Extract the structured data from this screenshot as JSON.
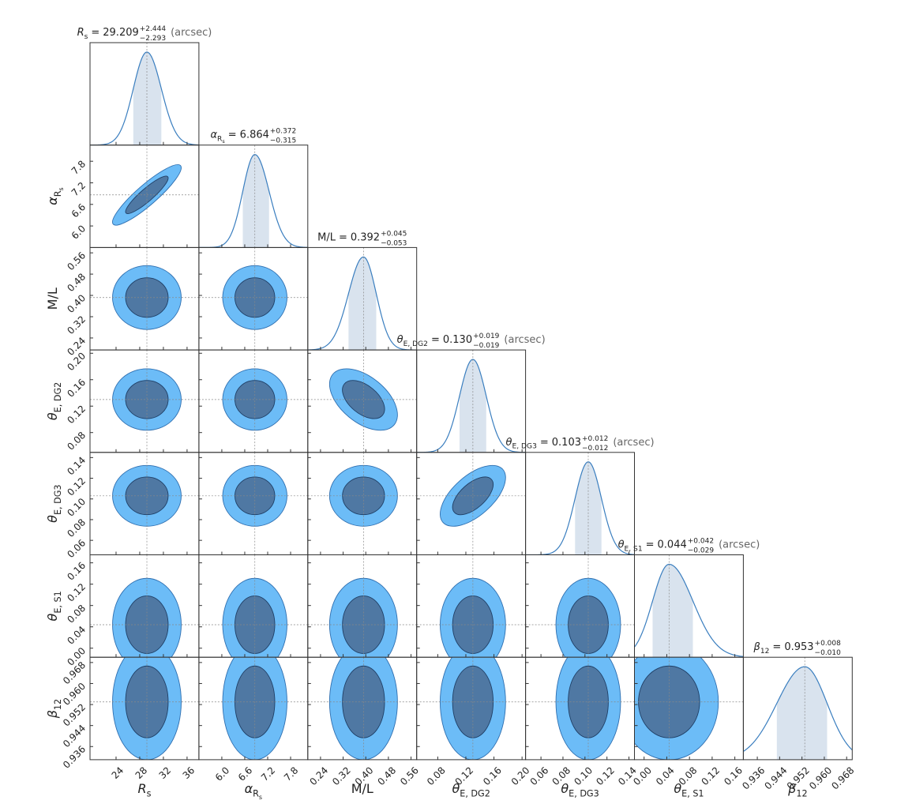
{
  "chart_data": {
    "type": "corner",
    "equals": "=",
    "parameters": [
      {
        "symbol": "R",
        "sub": "s",
        "median": 29.209,
        "median_label": "29.209",
        "err_plus": 2.444,
        "err_minus": 2.293,
        "err_plus_label": "+2.444",
        "err_minus_label": "−2.293",
        "unit": "(arcsec)",
        "lim": [
          19.6,
          38
        ],
        "ticks": [
          24,
          28,
          32,
          36
        ]
      },
      {
        "symbol": "α",
        "sub": "R",
        "sub2": "s",
        "median": 6.864,
        "median_label": "6.864",
        "err_plus": 0.372,
        "err_minus": 0.315,
        "err_plus_label": "+0.372",
        "err_minus_label": "−0.315",
        "lim": [
          5.4,
          8.25
        ],
        "ticks": [
          {
            "value": 6,
            "label": "6.0"
          },
          6.6,
          7.2,
          7.8
        ]
      },
      {
        "symbol": "M/L",
        "median": 0.392,
        "median_label": "0.392",
        "err_plus": 0.045,
        "err_minus": 0.053,
        "err_plus_label": "+0.045",
        "err_minus_label": "−0.053",
        "lim": [
          0.195,
          0.58
        ],
        "ticks": [
          0.24,
          0.32,
          {
            "value": 0.4,
            "label": "0.40"
          },
          0.48,
          0.56
        ]
      },
      {
        "symbol": "θ",
        "sub": "E, DG2",
        "median": 0.13,
        "median_label": "0.130",
        "err_plus": 0.019,
        "err_minus": 0.019,
        "err_plus_label": "+0.019",
        "err_minus_label": "−0.019",
        "unit": "(arcsec)",
        "lim": [
          0.05,
          0.205
        ],
        "ticks": [
          0.08,
          0.12,
          0.16,
          {
            "value": 0.2,
            "label": "0.20"
          }
        ]
      },
      {
        "symbol": "θ",
        "sub": "E, DG3",
        "median": 0.103,
        "median_label": "0.103",
        "err_plus": 0.012,
        "err_minus": 0.012,
        "err_plus_label": "+0.012",
        "err_minus_label": "−0.012",
        "unit": "(arcsec)",
        "lim": [
          0.046,
          0.145
        ],
        "ticks": [
          0.06,
          0.08,
          {
            "value": 0.1,
            "label": "0.10"
          },
          0.12,
          0.14
        ]
      },
      {
        "symbol": "θ",
        "sub": "E, S1",
        "median": 0.044,
        "median_label": "0.044",
        "err_plus": 0.042,
        "err_minus": 0.029,
        "err_plus_label": "+0.042",
        "err_minus_label": "−0.029",
        "unit": "(arcsec)",
        "lim": [
          -0.017,
          0.175
        ],
        "ticks": [
          {
            "value": 0,
            "label": "0.00"
          },
          0.04,
          0.08,
          0.12,
          0.16
        ]
      },
      {
        "symbol": "β",
        "sub": "12",
        "median": 0.953,
        "median_label": "0.953",
        "err_plus": 0.008,
        "err_minus": 0.01,
        "err_plus_label": "+0.008",
        "err_minus_label": "−0.010",
        "lim": [
          0.931,
          0.97
        ],
        "ticks": [
          0.936,
          0.944,
          0.952,
          {
            "value": 0.96,
            "label": "0.960"
          },
          0.968
        ]
      }
    ],
    "correlations": [
      [],
      [
        0.9
      ],
      [
        0,
        0
      ],
      [
        0,
        0,
        -0.5
      ],
      [
        0,
        0,
        0,
        0.6
      ],
      [
        0,
        0,
        0,
        0,
        0
      ],
      [
        0,
        0,
        0,
        0,
        0,
        0
      ]
    ]
  }
}
